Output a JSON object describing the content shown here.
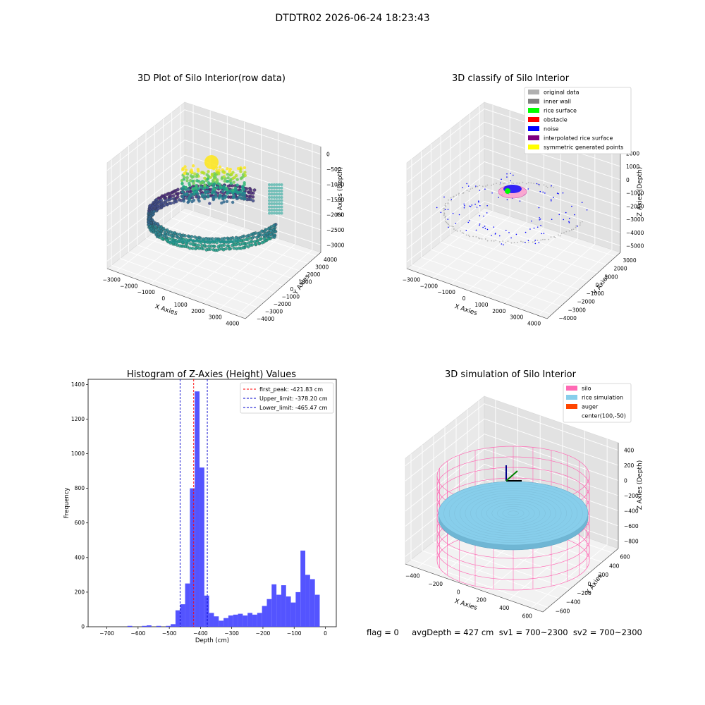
{
  "suptitle": "DTDTR02 2026-06-24 18:23:43",
  "footer": "flag = 0     avgDepth = 427 cm  sv1 = 700~2300  sv2 = 700~2300",
  "colors": {
    "hist_bar": "#4b4bff",
    "first_peak_line": "#ff0000",
    "limit_line": "#0000cc",
    "silo": "#ff69b4",
    "rice": "#87ceeb",
    "auger": "#ff4500"
  },
  "chart_data": [
    {
      "type": "scatter",
      "panel": "raw",
      "title": "3D Plot of Silo Interior(row data)",
      "xlabel": "X Axies",
      "ylabel": "Y Axies",
      "zlabel": "Z Axies (Depth)",
      "x_ticks": [
        "−3000",
        "−2000",
        "−1000",
        "0",
        "1000",
        "2000",
        "3000",
        "4000"
      ],
      "y_ticks": [
        "4000",
        "3000",
        "2000",
        "1000",
        "0",
        "−1000",
        "−2000",
        "−3000",
        "−4000"
      ],
      "z_ticks": [
        "0",
        "−500",
        "−1000",
        "−1500",
        "−2000",
        "−2500",
        "−3000"
      ],
      "xlim": [
        -3500,
        4000
      ],
      "ylim": [
        -4000,
        4000
      ],
      "zlim": [
        -3500,
        0
      ]
    },
    {
      "type": "scatter",
      "panel": "classify",
      "title": "3D classify of Silo Interior",
      "xlabel": "X Axies",
      "ylabel": "Y Axies",
      "zlabel": "Z Axies (Depth)",
      "x_ticks": [
        "−3000",
        "−2000",
        "−1000",
        "0",
        "1000",
        "2000",
        "3000",
        "4000"
      ],
      "y_ticks": [
        "3000",
        "2000",
        "1000",
        "0",
        "−1000",
        "−2000",
        "−3000",
        "−4000"
      ],
      "z_ticks": [
        "2000",
        "1000",
        "0",
        "−1000",
        "−2000",
        "−3000",
        "−4000",
        "−5000"
      ],
      "legend_position": "top-right",
      "legend": [
        {
          "label": "original data",
          "color": "#b0b0b0"
        },
        {
          "label": "inner wall",
          "color": "#808080"
        },
        {
          "label": "rice surface",
          "color": "#00ff00"
        },
        {
          "label": "obstacle",
          "color": "#ff0000"
        },
        {
          "label": "noise",
          "color": "#0000ff"
        },
        {
          "label": "interpolated rice surface",
          "color": "#800080"
        },
        {
          "label": "symmetric generated points",
          "color": "#ffff00"
        }
      ]
    },
    {
      "type": "bar",
      "panel": "histogram",
      "title": "Histogram of Z-Axies (Height) Values",
      "xlabel": "Depth (cm)",
      "ylabel": "Frequency",
      "xlim": [
        -760,
        35
      ],
      "ylim": [
        0,
        1430
      ],
      "x_ticks": [
        -700,
        -600,
        -500,
        -400,
        -300,
        -200,
        -100,
        0
      ],
      "y_ticks": [
        0,
        200,
        400,
        600,
        800,
        1000,
        1200,
        1400
      ],
      "bin_width": 15.4,
      "bin_starts": [
        -649.5,
        -634.1,
        -618.7,
        -603.3,
        -587.9,
        -572.5,
        -557.1,
        -541.7,
        -526.3,
        -510.9,
        -495.5,
        -480.1,
        -464.7,
        -449.3,
        -433.9,
        -418.5,
        -403.1,
        -387.7,
        -372.3,
        -356.9,
        -341.5,
        -326.1,
        -310.7,
        -295.3,
        -279.9,
        -264.5,
        -249.1,
        -233.7,
        -218.3,
        -202.9,
        -187.5,
        -172.1,
        -156.7,
        -141.3,
        -125.9,
        -110.5,
        -95.1,
        -79.7,
        -64.3,
        -48.9,
        -33.5,
        -18.1,
        -2.7
      ],
      "counts": [
        0,
        5,
        0,
        0,
        5,
        8,
        0,
        5,
        0,
        5,
        15,
        95,
        130,
        250,
        800,
        1360,
        920,
        180,
        80,
        60,
        35,
        50,
        65,
        70,
        75,
        65,
        80,
        70,
        80,
        120,
        160,
        245,
        185,
        240,
        175,
        140,
        200,
        440,
        300,
        275,
        185,
        0,
        0
      ],
      "lines": [
        {
          "label": "first_peak: -421.83 cm",
          "x": -421.83,
          "color": "#ff0000"
        },
        {
          "label": "Upper_limit: -378.20 cm",
          "x": -378.2,
          "color": "#0000cc"
        },
        {
          "label": "Lower_limit: -465.47 cm",
          "x": -465.47,
          "color": "#0000cc"
        }
      ],
      "legend_position": "top-right"
    },
    {
      "type": "scatter",
      "panel": "simulation",
      "title": "3D simulation of Silo Interior",
      "xlabel": "X Axies",
      "ylabel": "Y Axies",
      "zlabel": "Z Axies (Depth)",
      "x_ticks": [
        "−400",
        "−200",
        "0",
        "200",
        "400",
        "600"
      ],
      "y_ticks": [
        "600",
        "400",
        "200",
        "0",
        "−200",
        "−400",
        "−600"
      ],
      "z_ticks": [
        "400",
        "200",
        "0",
        "−200",
        "−400",
        "−600",
        "−800"
      ],
      "legend_position": "top-right",
      "legend": [
        {
          "label": "silo",
          "color": "#ff69b4"
        },
        {
          "label": "rice simulation",
          "color": "#87ceeb"
        },
        {
          "label": "auger",
          "color": "#ff4500"
        },
        {
          "label": "center(100,-50)",
          "color": ""
        }
      ]
    }
  ]
}
